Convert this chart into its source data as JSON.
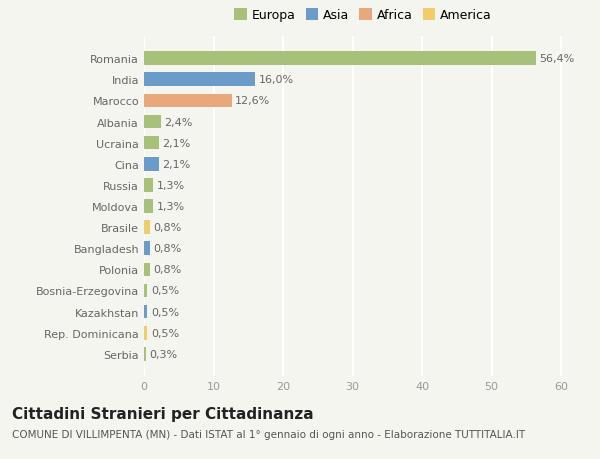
{
  "categories": [
    "Romania",
    "India",
    "Marocco",
    "Albania",
    "Ucraina",
    "Cina",
    "Russia",
    "Moldova",
    "Brasile",
    "Bangladesh",
    "Polonia",
    "Bosnia-Erzegovina",
    "Kazakhstan",
    "Rep. Dominicana",
    "Serbia"
  ],
  "values": [
    56.4,
    16.0,
    12.6,
    2.4,
    2.1,
    2.1,
    1.3,
    1.3,
    0.8,
    0.8,
    0.8,
    0.5,
    0.5,
    0.5,
    0.3
  ],
  "labels": [
    "56,4%",
    "16,0%",
    "12,6%",
    "2,4%",
    "2,1%",
    "2,1%",
    "1,3%",
    "1,3%",
    "0,8%",
    "0,8%",
    "0,8%",
    "0,5%",
    "0,5%",
    "0,5%",
    "0,3%"
  ],
  "bar_colors": [
    "#a8c17a",
    "#6b9bc8",
    "#e8a87c",
    "#a8c17a",
    "#a8c17a",
    "#6b9bc8",
    "#a8c17a",
    "#a8c17a",
    "#f0cc6a",
    "#6b9bc8",
    "#a8c17a",
    "#a8c17a",
    "#6b9bc8",
    "#f0cc6a",
    "#a8c17a"
  ],
  "continent_colors": {
    "Europa": "#a8c17a",
    "Asia": "#6b9bc8",
    "Africa": "#e8a87c",
    "America": "#f0cc6a"
  },
  "xlim": [
    0,
    63
  ],
  "xticks": [
    0,
    10,
    20,
    30,
    40,
    50,
    60
  ],
  "title": "Cittadini Stranieri per Cittadinanza",
  "subtitle": "COMUNE DI VILLIMPENTA (MN) - Dati ISTAT al 1° gennaio di ogni anno - Elaborazione TUTTITALIA.IT",
  "background_color": "#f5f5f0",
  "grid_color": "#ffffff",
  "title_fontsize": 11,
  "subtitle_fontsize": 7.5,
  "label_fontsize": 8,
  "tick_fontsize": 8,
  "legend_fontsize": 9
}
